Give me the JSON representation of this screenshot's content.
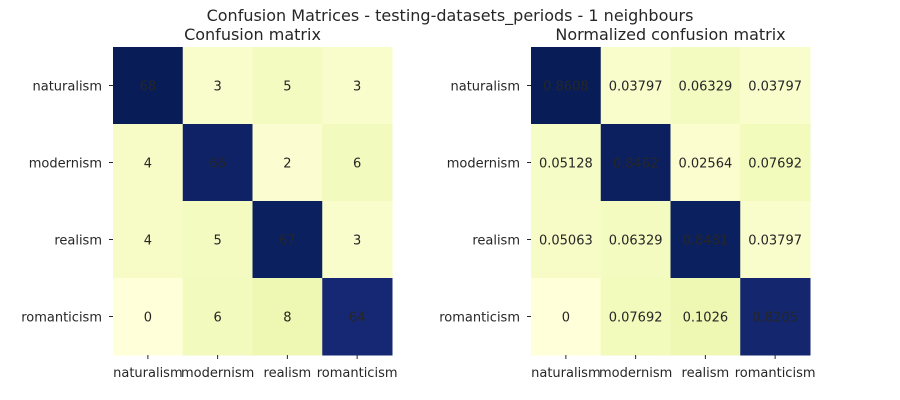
{
  "chart_data": {
    "type": "heatmap",
    "suptitle": "Confusion Matrices - testing-datasets_periods - 1 neighbours",
    "labels": [
      "naturalism",
      "modernism",
      "realism",
      "romanticism"
    ],
    "colors": [
      "#ffffd9",
      "#edf8b1",
      "#c7e9b4",
      "#7fcdbb",
      "#41b6c4",
      "#1d91c0",
      "#225ea8",
      "#253494",
      "#081d58"
    ],
    "matrices": [
      {
        "title": "Confusion matrix",
        "display": [
          [
            "68",
            "3",
            "5",
            "3"
          ],
          [
            "4",
            "66",
            "2",
            "6"
          ],
          [
            "4",
            "5",
            "67",
            "3"
          ],
          [
            "0",
            "6",
            "8",
            "64"
          ]
        ],
        "values": [
          [
            68,
            3,
            5,
            3
          ],
          [
            4,
            66,
            2,
            6
          ],
          [
            4,
            5,
            67,
            3
          ],
          [
            0,
            6,
            8,
            64
          ]
        ]
      },
      {
        "title": "Normalized confusion matrix",
        "display": [
          [
            "0.8608",
            "0.03797",
            "0.06329",
            "0.03797"
          ],
          [
            "0.05128",
            "0.8462",
            "0.02564",
            "0.07692"
          ],
          [
            "0.05063",
            "0.06329",
            "0.8481",
            "0.03797"
          ],
          [
            "0",
            "0.07692",
            "0.1026",
            "0.8205"
          ]
        ],
        "values": [
          [
            0.8608,
            0.03797,
            0.06329,
            0.03797
          ],
          [
            0.05128,
            0.8462,
            0.02564,
            0.07692
          ],
          [
            0.05063,
            0.06329,
            0.8481,
            0.03797
          ],
          [
            0,
            0.07692,
            0.1026,
            0.8205
          ]
        ]
      }
    ]
  }
}
